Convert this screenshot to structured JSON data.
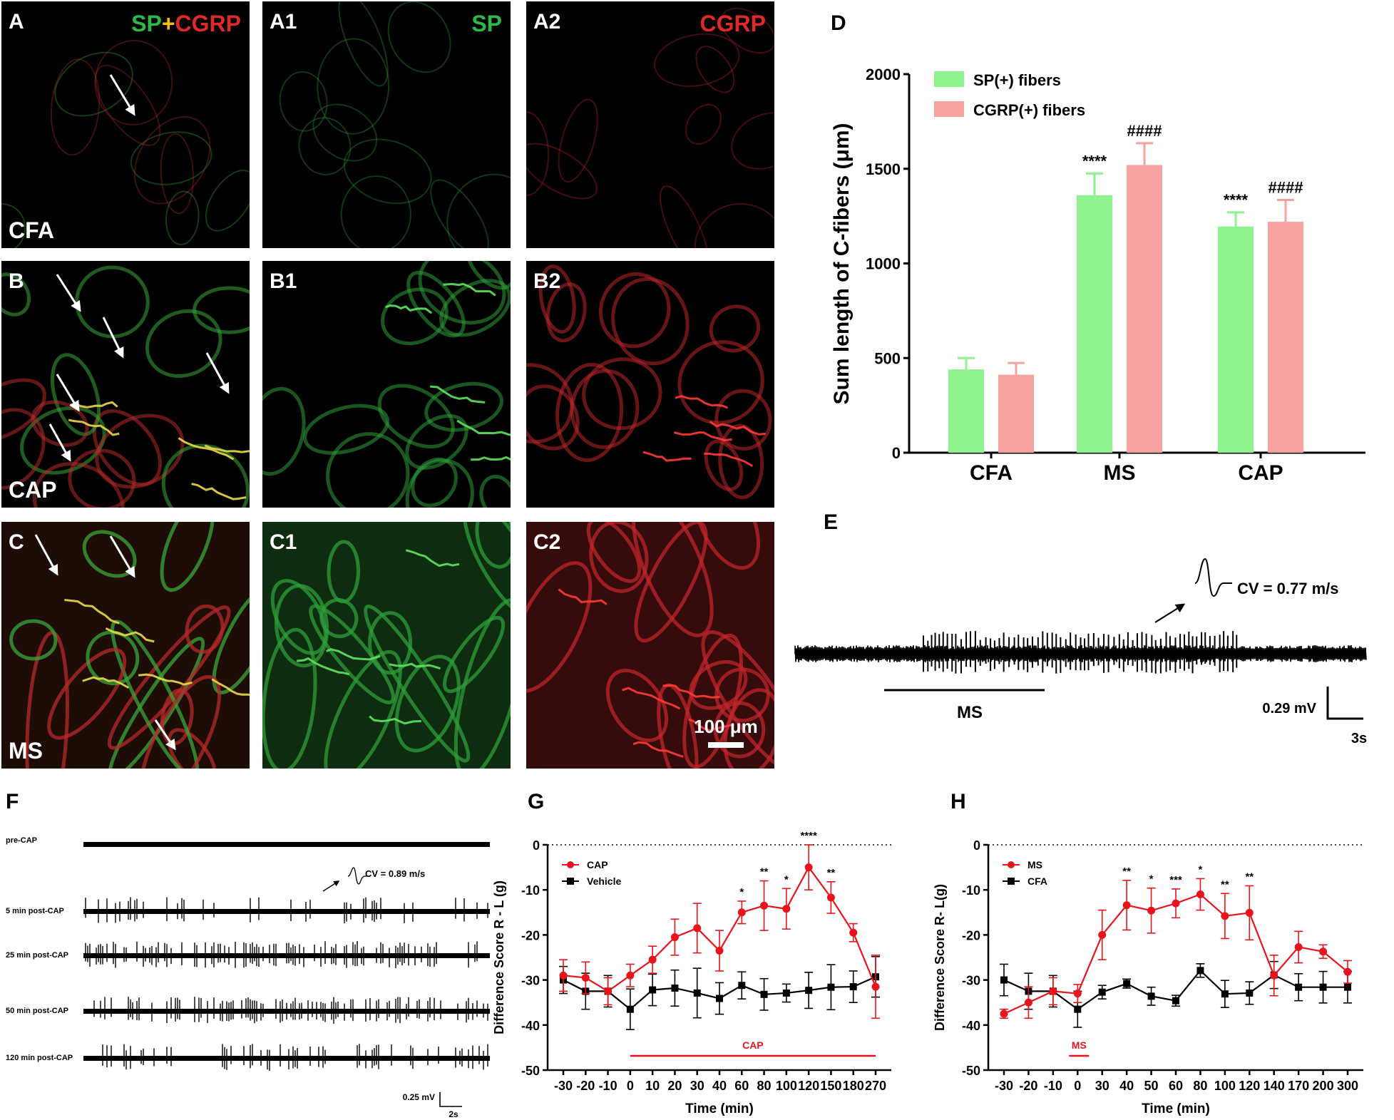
{
  "colors": {
    "sp_green": "#8ef28e",
    "cgrp_red": "#f7a1a1",
    "cap_red": "#e8141b",
    "black": "#000000",
    "micro_bg": "#000000"
  },
  "micrographs": [
    {
      "label": "A",
      "channel": "SP+CGRP",
      "condition": "CFA"
    },
    {
      "label": "A1",
      "channel": "SP",
      "condition": ""
    },
    {
      "label": "A2",
      "channel": "CGRP",
      "condition": ""
    },
    {
      "label": "B",
      "channel": "",
      "condition": "CAP"
    },
    {
      "label": "B1",
      "channel": "",
      "condition": ""
    },
    {
      "label": "B2",
      "channel": "",
      "condition": ""
    },
    {
      "label": "C",
      "channel": "",
      "condition": "MS"
    },
    {
      "label": "C1",
      "channel": "",
      "condition": ""
    },
    {
      "label": "C2",
      "channel": "",
      "condition": ""
    }
  ],
  "merge_label": {
    "sp": "SP",
    "plus": "+",
    "cgrp": "CGRP"
  },
  "scale_bar_label": "100 μm",
  "panel_letters": {
    "D": "D",
    "E": "E",
    "F": "F",
    "G": "G",
    "H": "H"
  },
  "panel_e": {
    "cv_label": "CV = 0.77 m/s",
    "stim_label": "MS",
    "scale_v": "0.29 mV",
    "scale_t": "3s"
  },
  "panel_f": {
    "traces": [
      "pre-CAP",
      "5 min post-CAP",
      "25 min post-CAP",
      "50 min post-CAP",
      "120 min post-CAP"
    ],
    "cv_label": "CV = 0.89 m/s",
    "scale_v": "0.25 mV",
    "scale_t": "2s"
  },
  "chart_data": [
    {
      "panel": "D",
      "type": "bar",
      "ylabel": "Sum length of C-fibers (μm)",
      "xlabel": "",
      "ylim": [
        0,
        2000
      ],
      "yticks": [
        0,
        500,
        1000,
        1500,
        2000
      ],
      "categories": [
        "CFA",
        "MS",
        "CAP"
      ],
      "legend_position": "top-left",
      "series": [
        {
          "name": "SP(+) fibers",
          "color": "#8ef28e",
          "values": [
            440,
            1360,
            1195
          ],
          "errors": [
            60,
            115,
            75
          ],
          "annotations": [
            "",
            "****",
            "****"
          ]
        },
        {
          "name": "CGRP(+) fibers",
          "color": "#f7a1a1",
          "values": [
            412,
            1520,
            1220
          ],
          "errors": [
            62,
            115,
            115
          ],
          "annotations": [
            "",
            "####",
            "####"
          ]
        }
      ]
    },
    {
      "panel": "G",
      "type": "line",
      "xlabel": "Time (min)",
      "ylabel": "Difference Score R - L (g)",
      "ylim": [
        -50,
        0
      ],
      "yticks": [
        0,
        -10,
        -20,
        -30,
        -40,
        -50
      ],
      "x": [
        "-30",
        "-20",
        "-10",
        "0",
        "10",
        "20",
        "30",
        "40",
        "60",
        "80",
        "100",
        "120",
        "150",
        "180",
        "270"
      ],
      "legend_position": "top-left",
      "treatment_label": "CAP",
      "series": [
        {
          "name": "CAP",
          "color": "#e8141b",
          "marker": "circle",
          "values": [
            -29,
            -29.5,
            -32.5,
            -29,
            -25.5,
            -20.5,
            -18.5,
            -23.5,
            -15,
            -13.5,
            -14.2,
            -5,
            -11.7,
            -19.5,
            -31.5
          ],
          "errors": [
            3.5,
            3.5,
            3,
            2.5,
            3,
            4,
            5.5,
            4.5,
            2.5,
            5.5,
            4.5,
            5,
            3.5,
            2,
            7
          ],
          "annotations": [
            "",
            "",
            "",
            "",
            "",
            "",
            "",
            "",
            "*",
            "**",
            "*",
            "****",
            "**",
            "",
            ""
          ]
        },
        {
          "name": "Vehicle",
          "color": "#000000",
          "marker": "square",
          "values": [
            -30,
            -32.5,
            -32.5,
            -36.5,
            -32.2,
            -31.8,
            -32.9,
            -34.1,
            -31.2,
            -33.2,
            -32.9,
            -32.3,
            -31.6,
            -31.5,
            -29.3
          ],
          "errors": [
            3,
            4,
            3.5,
            4.5,
            3.5,
            4,
            5.5,
            3.5,
            3,
            3.5,
            2,
            4,
            5,
            3.5,
            4.5
          ]
        }
      ]
    },
    {
      "panel": "H",
      "type": "line",
      "xlabel": "Time (min)",
      "ylabel": "Difference Score R- L(g)",
      "ylim": [
        -50,
        0
      ],
      "yticks": [
        0,
        -10,
        -20,
        -30,
        -40,
        -50
      ],
      "x": [
        "-30",
        "-20",
        "-10",
        "0",
        "30",
        "40",
        "50",
        "60",
        "80",
        "100",
        "120",
        "140",
        "170",
        "200",
        "300"
      ],
      "legend_position": "top-left",
      "treatment_label": "MS",
      "series": [
        {
          "name": "MS",
          "color": "#e8141b",
          "marker": "circle",
          "values": [
            -37.5,
            -35,
            -32.5,
            -33,
            -20,
            -13.4,
            -14.6,
            -13,
            -11,
            -15.8,
            -15.1,
            -29,
            -22.7,
            -23.7,
            -28.2
          ],
          "errors": [
            1,
            3.5,
            3,
            2,
            5.5,
            5.5,
            5,
            3.2,
            3.5,
            5,
            6,
            4.5,
            3.5,
            1.5,
            2.5
          ],
          "annotations": [
            "",
            "",
            "",
            "",
            "",
            "**",
            "*",
            "***",
            "*",
            "**",
            "**",
            "",
            "",
            "",
            ""
          ]
        },
        {
          "name": "CFA",
          "color": "#000000",
          "marker": "square",
          "values": [
            -30,
            -32.5,
            -32.5,
            -36.5,
            -32.7,
            -30.8,
            -33.6,
            -34.6,
            -27.9,
            -33.1,
            -32.9,
            -28.9,
            -31.6,
            -31.6,
            -31.6
          ],
          "errors": [
            3.5,
            4,
            3.5,
            4,
            1.5,
            1,
            2,
            1.2,
            1.5,
            3,
            2.5,
            3,
            3,
            3.5,
            3.5
          ]
        }
      ]
    }
  ]
}
